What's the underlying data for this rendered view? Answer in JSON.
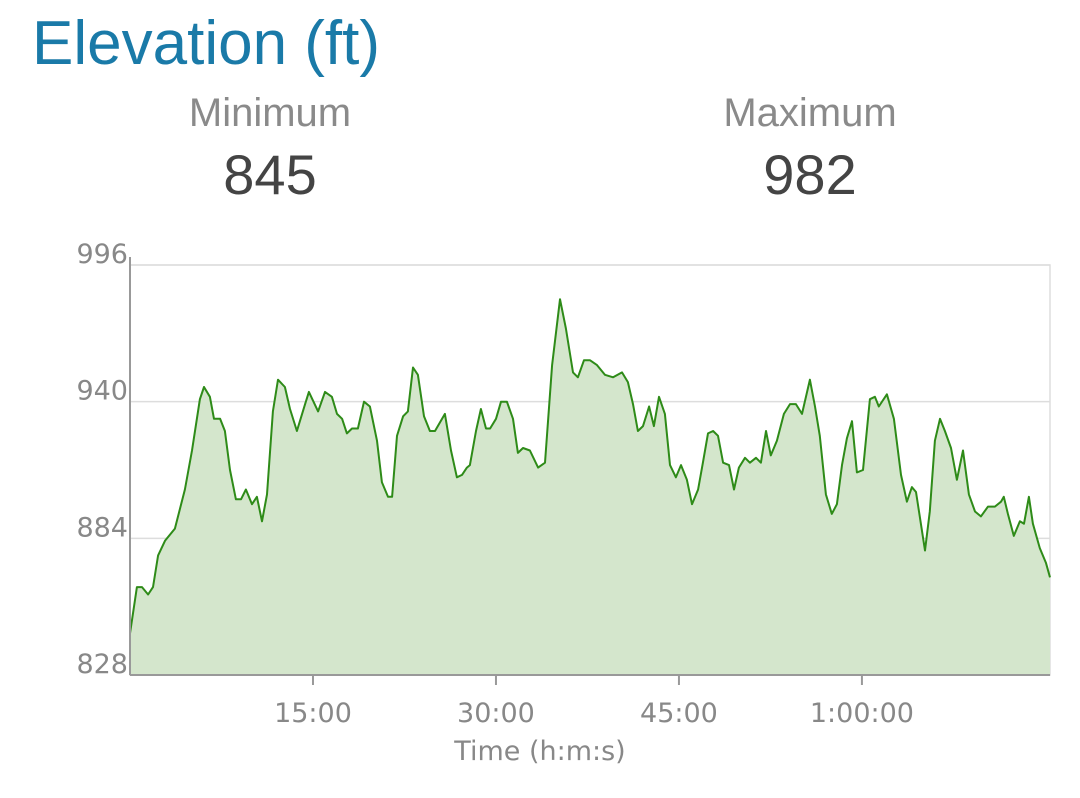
{
  "title": "Elevation (ft)",
  "stats": [
    {
      "label": "Minimum",
      "value": 845
    },
    {
      "label": "Maximum",
      "value": 982
    }
  ],
  "chart_data": {
    "type": "area",
    "xlabel": "Time (h:m:s)",
    "x": [
      0,
      34,
      59,
      89,
      113,
      138,
      172,
      221,
      270,
      305,
      344,
      364,
      393,
      413,
      443,
      467,
      492,
      521,
      546,
      570,
      600,
      624,
      649,
      674,
      703,
      728,
      762,
      787,
      821,
      861,
      880,
      925,
      959,
      993,
      1018,
      1043,
      1067,
      1092,
      1121,
      1151,
      1180,
      1215,
      1239,
      1269,
      1289,
      1313,
      1343,
      1367,
      1392,
      1416,
      1446,
      1475,
      1500,
      1549,
      1579,
      1608,
      1633,
      1657,
      1672,
      1702,
      1726,
      1751,
      1771,
      1800,
      1825,
      1854,
      1884,
      1908,
      1933,
      1967,
      2007,
      2041,
      2076,
      2115,
      2144,
      2179,
      2203,
      2233,
      2262,
      2297,
      2336,
      2376,
      2420,
      2449,
      2474,
      2498,
      2523,
      2553,
      2577,
      2602,
      2631,
      2656,
      2685,
      2710,
      2739,
      2764,
      2794,
      2818,
      2843,
      2868,
      2892,
      2917,
      2946,
      2971,
      2995,
      3025,
      3049,
      3079,
      3103,
      3128,
      3152,
      3182,
      3216,
      3246,
      3275,
      3305,
      3344,
      3369,
      3393,
      3423,
      3452,
      3477,
      3502,
      3526,
      3551,
      3575,
      3605,
      3639,
      3664,
      3683,
      3723,
      3757,
      3792,
      3821,
      3846,
      3866,
      3910,
      3934,
      3959,
      3984,
      4008,
      4038,
      4067,
      4097,
      4126,
      4156,
      4185,
      4220,
      4254,
      4284,
      4298,
      4318,
      4347,
      4377,
      4397,
      4421,
      4441,
      4475,
      4505,
      4525
    ],
    "values": [
      845,
      864,
      864,
      861,
      864,
      877,
      883,
      888,
      904,
      920,
      941,
      946,
      942,
      933,
      933,
      928,
      912,
      900,
      900,
      904,
      898,
      901,
      891,
      902,
      936,
      949,
      946,
      937,
      928,
      939,
      944,
      936,
      944,
      942,
      935,
      933,
      927,
      929,
      929,
      940,
      938,
      924,
      907,
      901,
      901,
      926,
      934,
      936,
      954,
      951,
      934,
      928,
      928,
      935,
      920,
      909,
      910,
      913,
      914,
      928,
      937,
      929,
      929,
      933,
      940,
      940,
      933,
      919,
      921,
      920,
      913,
      915,
      955,
      982,
      970,
      952,
      950,
      957,
      957,
      955,
      951,
      950,
      952,
      948,
      939,
      928,
      930,
      938,
      930,
      942,
      935,
      914,
      909,
      914,
      908,
      898,
      904,
      915,
      927,
      928,
      926,
      915,
      914,
      904,
      913,
      917,
      915,
      917,
      915,
      928,
      918,
      924,
      935,
      939,
      939,
      935,
      949,
      938,
      926,
      902,
      894,
      898,
      914,
      925,
      932,
      911,
      912,
      941,
      942,
      938,
      943,
      933,
      910,
      899,
      905,
      903,
      879,
      895,
      924,
      933,
      928,
      921,
      908,
      920,
      902,
      895,
      893,
      897,
      897,
      899,
      901,
      894,
      885,
      891,
      890,
      901,
      890,
      880,
      874,
      868
    ],
    "color": "#2e8b18",
    "fill_color": "#d4e6cc",
    "xlim": [
      0,
      4525
    ],
    "ylim": [
      828,
      996
    ],
    "xticks": [
      {
        "value": 900,
        "label": "15:00"
      },
      {
        "value": 1800,
        "label": "30:00"
      },
      {
        "value": 2700,
        "label": "45:00"
      },
      {
        "value": 3600,
        "label": "1:00:00"
      }
    ],
    "yticks": [
      828,
      884,
      940,
      996
    ],
    "grid": true
  }
}
